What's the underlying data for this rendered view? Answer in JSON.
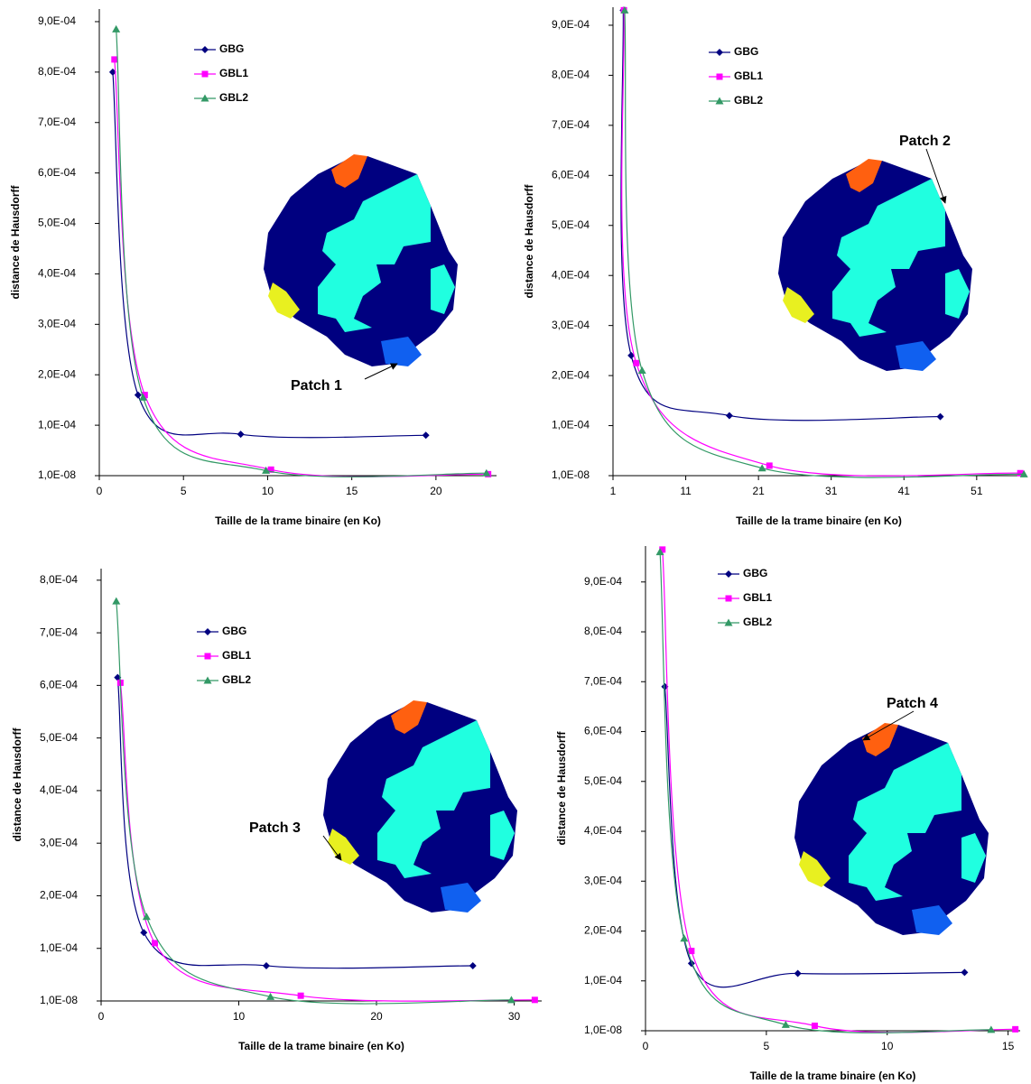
{
  "chart_data": [
    {
      "type": "line",
      "xlabel": "Taille de la trame binaire (en Ko)",
      "ylabel": "distance de Hausdorff",
      "xlim": [
        0,
        23.6
      ],
      "xticks": [
        0,
        5,
        10,
        15,
        20
      ],
      "ylim": [
        1e-08,
        0.000925
      ],
      "yticks": [
        {
          "value": 1e-08,
          "label": "1,0E-08"
        },
        {
          "value": 0.0001,
          "label": "1,0E-04"
        },
        {
          "value": 0.0002,
          "label": "2,0E-04"
        },
        {
          "value": 0.0003,
          "label": "3,0E-04"
        },
        {
          "value": 0.0004,
          "label": "4,0E-04"
        },
        {
          "value": 0.0005,
          "label": "5,0E-04"
        },
        {
          "value": 0.0006,
          "label": "6,0E-04"
        },
        {
          "value": 0.0007,
          "label": "7,0E-04"
        },
        {
          "value": 0.0008,
          "label": "8,0E-04"
        },
        {
          "value": 0.0009,
          "label": "9,0E-04"
        }
      ],
      "series": [
        {
          "name": "GBG",
          "color": "#000080",
          "marker": "diamond",
          "x": [
            0.8,
            2.3,
            8.4,
            19.4
          ],
          "values": [
            0.0008,
            0.00016,
            8.2e-05,
            8e-05
          ]
        },
        {
          "name": "GBL1",
          "color": "#ff00ff",
          "marker": "square",
          "x": [
            0.9,
            2.7,
            10.2,
            23.1
          ],
          "values": [
            0.000825,
            0.00016,
            1.2e-05,
            3e-06
          ]
        },
        {
          "name": "GBL2",
          "color": "#339966",
          "marker": "triangle",
          "x": [
            1.0,
            2.6,
            9.9,
            23.0
          ],
          "values": [
            0.000885,
            0.000155,
            1e-05,
            5e-06
          ]
        }
      ],
      "annotation": "Patch 1"
    },
    {
      "type": "line",
      "xlabel": "Taille de la trame binaire (en Ko)",
      "ylabel": "distance de Hausdorff",
      "xlim": [
        1,
        57.6
      ],
      "xticks": [
        1,
        11,
        21,
        31,
        41,
        51
      ],
      "ylim": [
        1e-08,
        0.000936
      ],
      "yticks": [
        {
          "value": 1e-08,
          "label": "1,0E-08"
        },
        {
          "value": 0.0001,
          "label": "1,0E-04"
        },
        {
          "value": 0.0002,
          "label": "2,0E-04"
        },
        {
          "value": 0.0003,
          "label": "3,0E-04"
        },
        {
          "value": 0.0004,
          "label": "4,0E-04"
        },
        {
          "value": 0.0005,
          "label": "5,0E-04"
        },
        {
          "value": 0.0006,
          "label": "6,0E-04"
        },
        {
          "value": 0.0007,
          "label": "7,0E-04"
        },
        {
          "value": 0.0008,
          "label": "8,0E-04"
        },
        {
          "value": 0.0009,
          "label": "9,0E-04"
        }
      ],
      "series": [
        {
          "name": "GBG",
          "color": "#000080",
          "marker": "diamond",
          "x": [
            2.4,
            3.5,
            17,
            46
          ],
          "values": [
            0.00093,
            0.00024,
            0.00012,
            0.000118
          ]
        },
        {
          "name": "GBL1",
          "color": "#ff00ff",
          "marker": "square",
          "x": [
            2.5,
            4.2,
            22.5,
            57
          ],
          "values": [
            0.00093,
            0.000225,
            2e-05,
            5e-06
          ]
        },
        {
          "name": "GBL2",
          "color": "#339966",
          "marker": "triangle",
          "x": [
            2.6,
            5,
            21.5,
            57.5
          ],
          "values": [
            0.00093,
            0.00021,
            1.5e-05,
            3e-06
          ]
        }
      ],
      "annotation": "Patch 2"
    },
    {
      "type": "line",
      "xlabel": "Taille de la trame binaire (en Ko)",
      "ylabel": "distance de Hausdorff",
      "xlim": [
        0,
        32
      ],
      "xticks": [
        0,
        10,
        20,
        30
      ],
      "ylim": [
        1e-08,
        0.000822
      ],
      "yticks": [
        {
          "value": 1e-08,
          "label": "1,0E-08"
        },
        {
          "value": 0.0001,
          "label": "1,0E-04"
        },
        {
          "value": 0.0002,
          "label": "2,0E-04"
        },
        {
          "value": 0.0003,
          "label": "3,0E-04"
        },
        {
          "value": 0.0004,
          "label": "4,0E-04"
        },
        {
          "value": 0.0005,
          "label": "5,0E-04"
        },
        {
          "value": 0.0006,
          "label": "6,0E-04"
        },
        {
          "value": 0.0007,
          "label": "7,0E-04"
        },
        {
          "value": 0.0008,
          "label": "8,0E-04"
        }
      ],
      "series": [
        {
          "name": "GBG",
          "color": "#000080",
          "marker": "diamond",
          "x": [
            1.2,
            3.1,
            12,
            27
          ],
          "values": [
            0.000615,
            0.00013,
            6.7e-05,
            6.7e-05
          ]
        },
        {
          "name": "GBL1",
          "color": "#ff00ff",
          "marker": "square",
          "x": [
            1.4,
            3.9,
            14.5,
            31.5
          ],
          "values": [
            0.000605,
            0.00011,
            1e-05,
            2e-06
          ]
        },
        {
          "name": "GBL2",
          "color": "#339966",
          "marker": "triangle",
          "x": [
            1.1,
            3.3,
            12.3,
            29.8
          ],
          "values": [
            0.00076,
            0.00016,
            8e-06,
            2e-06
          ]
        }
      ],
      "annotation": "Patch 3"
    },
    {
      "type": "line",
      "xlabel": "Taille de la trame binaire (en Ko)",
      "ylabel": "distance de Hausdorff",
      "xlim": [
        0,
        15.5
      ],
      "xticks": [
        0,
        5,
        10,
        15
      ],
      "ylim": [
        1e-08,
        0.000972
      ],
      "yticks": [
        {
          "value": 1e-08,
          "label": "1,0E-08"
        },
        {
          "value": 0.0001,
          "label": "1,0E-04"
        },
        {
          "value": 0.0002,
          "label": "2,0E-04"
        },
        {
          "value": 0.0003,
          "label": "3,0E-04"
        },
        {
          "value": 0.0004,
          "label": "4,0E-04"
        },
        {
          "value": 0.0005,
          "label": "5,0E-04"
        },
        {
          "value": 0.0006,
          "label": "6,0E-04"
        },
        {
          "value": 0.0007,
          "label": "7,0E-04"
        },
        {
          "value": 0.0008,
          "label": "8,0E-04"
        },
        {
          "value": 0.0009,
          "label": "9,0E-04"
        }
      ],
      "series": [
        {
          "name": "GBG",
          "color": "#000080",
          "marker": "diamond",
          "x": [
            0.8,
            1.9,
            6.3,
            13.2
          ],
          "values": [
            0.00069,
            0.000135,
            0.000115,
            0.000117
          ]
        },
        {
          "name": "GBL1",
          "color": "#ff00ff",
          "marker": "square",
          "x": [
            0.7,
            1.9,
            7,
            15.3
          ],
          "values": [
            0.000965,
            0.00016,
            1e-05,
            3e-06
          ]
        },
        {
          "name": "GBL2",
          "color": "#339966",
          "marker": "triangle",
          "x": [
            0.6,
            1.6,
            5.8,
            14.3
          ],
          "values": [
            0.00096,
            0.000185,
            1.2e-05,
            2e-06
          ]
        }
      ],
      "annotation": "Patch 4"
    }
  ]
}
